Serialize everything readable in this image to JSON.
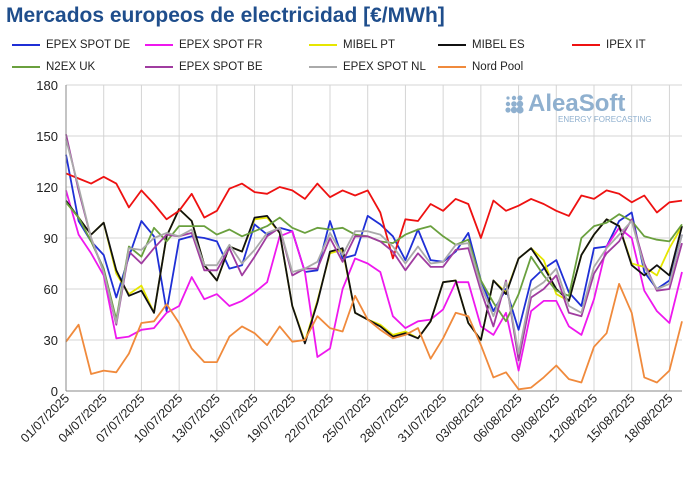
{
  "title": "Mercados europeos de electricidad [€/MWh]",
  "logo": {
    "name": "AleaSoft",
    "tagline": "ENERGY FORECASTING",
    "color": "#8fb0cf"
  },
  "chart_data": {
    "type": "line",
    "ylim": [
      0,
      180
    ],
    "yticks": [
      0,
      30,
      60,
      90,
      120,
      150,
      180
    ],
    "grid": true,
    "legend_position": "top",
    "x": [
      "01/07/2025",
      "02/07/2025",
      "03/07/2025",
      "04/07/2025",
      "05/07/2025",
      "06/07/2025",
      "07/07/2025",
      "08/07/2025",
      "09/07/2025",
      "10/07/2025",
      "11/07/2025",
      "12/07/2025",
      "13/07/2025",
      "14/07/2025",
      "15/07/2025",
      "16/07/2025",
      "17/07/2025",
      "18/07/2025",
      "19/07/2025",
      "20/07/2025",
      "21/07/2025",
      "22/07/2025",
      "23/07/2025",
      "24/07/2025",
      "25/07/2025",
      "26/07/2025",
      "27/07/2025",
      "28/07/2025",
      "29/07/2025",
      "30/07/2025",
      "31/07/2025",
      "01/08/2025",
      "02/08/2025",
      "03/08/2025",
      "04/08/2025",
      "05/08/2025",
      "06/08/2025",
      "07/08/2025",
      "08/08/2025",
      "09/08/2025",
      "10/08/2025",
      "11/08/2025",
      "12/08/2025",
      "13/08/2025",
      "14/08/2025",
      "15/08/2025",
      "16/08/2025",
      "17/08/2025",
      "18/08/2025",
      "19/08/2025"
    ],
    "xtick_labels": [
      "01/07/2025",
      "04/07/2025",
      "07/07/2025",
      "10/07/2025",
      "13/07/2025",
      "16/07/2025",
      "19/07/2025",
      "22/07/2025",
      "25/07/2025",
      "28/07/2025",
      "31/07/2025",
      "03/08/2025",
      "06/08/2025",
      "09/08/2025",
      "12/08/2025",
      "15/08/2025",
      "18/08/2025"
    ],
    "series": [
      {
        "name": "EPEX SPOT DE",
        "color": "#1f2fd6",
        "values": [
          139,
          100,
          88,
          80,
          55,
          79,
          100,
          91,
          47,
          89,
          91,
          90,
          88,
          72,
          74,
          98,
          92,
          96,
          94,
          70,
          71,
          100,
          78,
          80,
          103,
          98,
          91,
          77,
          95,
          77,
          76,
          82,
          93,
          65,
          47,
          60,
          36,
          65,
          72,
          77,
          58,
          50,
          84,
          85,
          100,
          105,
          70,
          60,
          65,
          92
        ]
      },
      {
        "name": "EPEX SPOT FR",
        "color": "#ee18ee",
        "values": [
          118,
          92,
          81,
          68,
          31,
          32,
          36,
          37,
          46,
          50,
          67,
          54,
          57,
          50,
          53,
          58,
          64,
          91,
          94,
          70,
          20,
          25,
          60,
          78,
          75,
          70,
          44,
          37,
          41,
          42,
          48,
          64,
          64,
          38,
          33,
          46,
          12,
          47,
          53,
          53,
          38,
          33,
          54,
          85,
          96,
          90,
          59,
          47,
          40,
          70
        ]
      },
      {
        "name": "MIBEL PT",
        "color": "#e6e600",
        "values": [
          111,
          102,
          92,
          99,
          69,
          57,
          62,
          46,
          91,
          107,
          100,
          74,
          65,
          85,
          82,
          101,
          102,
          93,
          50,
          29,
          53,
          81,
          83,
          46,
          42,
          39,
          33,
          35,
          31,
          41,
          64,
          65,
          40,
          30,
          65,
          58,
          78,
          84,
          77,
          57,
          53,
          80,
          92,
          101,
          97,
          75,
          73,
          68,
          84,
          97
        ]
      },
      {
        "name": "MIBEL ES",
        "color": "#111111",
        "values": [
          112,
          102,
          92,
          99,
          71,
          56,
          59,
          46,
          91,
          107,
          100,
          74,
          65,
          85,
          82,
          102,
          103,
          93,
          50,
          28,
          52,
          82,
          84,
          46,
          42,
          38,
          32,
          34,
          31,
          41,
          64,
          65,
          40,
          30,
          65,
          57,
          78,
          84,
          73,
          60,
          53,
          80,
          92,
          101,
          97,
          74,
          68,
          74,
          68,
          97
        ]
      },
      {
        "name": "IPEX IT",
        "color": "#ee1111",
        "values": [
          128,
          125,
          122,
          126,
          122,
          108,
          118,
          110,
          101,
          106,
          116,
          102,
          106,
          119,
          122,
          117,
          116,
          120,
          118,
          113,
          122,
          114,
          118,
          115,
          118,
          105,
          78,
          101,
          100,
          110,
          106,
          113,
          110,
          90,
          112,
          106,
          109,
          113,
          110,
          106,
          103,
          115,
          113,
          118,
          116,
          111,
          115,
          105,
          111,
          112
        ]
      },
      {
        "name": "N2EX UK",
        "color": "#6aa03e",
        "values": [
          111,
          102,
          88,
          72,
          42,
          85,
          79,
          96,
          88,
          97,
          97,
          97,
          92,
          95,
          91,
          94,
          97,
          102,
          96,
          93,
          96,
          95,
          96,
          92,
          91,
          88,
          87,
          92,
          95,
          97,
          91,
          86,
          89,
          65,
          52,
          41,
          57,
          79,
          68,
          59,
          56,
          90,
          97,
          99,
          104,
          100,
          91,
          89,
          88,
          98
        ]
      },
      {
        "name": "EPEX SPOT BE",
        "color": "#a03ca0",
        "values": [
          151,
          118,
          90,
          70,
          39,
          82,
          75,
          84,
          92,
          91,
          93,
          71,
          71,
          84,
          68,
          79,
          91,
          96,
          68,
          72,
          72,
          90,
          76,
          91,
          91,
          88,
          82,
          71,
          81,
          73,
          73,
          83,
          84,
          59,
          38,
          65,
          18,
          55,
          60,
          68,
          46,
          44,
          69,
          81,
          88,
          101,
          75,
          59,
          60,
          87
        ]
      },
      {
        "name": "EPEX SPOT NL",
        "color": "#aaaaaa",
        "values": [
          148,
          120,
          90,
          70,
          40,
          84,
          83,
          90,
          93,
          91,
          95,
          74,
          74,
          86,
          75,
          83,
          93,
          96,
          70,
          72,
          76,
          93,
          80,
          94,
          94,
          92,
          85,
          75,
          85,
          75,
          76,
          86,
          87,
          62,
          44,
          64,
          22,
          59,
          64,
          72,
          50,
          46,
          73,
          84,
          92,
          100,
          73,
          60,
          63,
          92
        ]
      },
      {
        "name": "Nord Pool",
        "color": "#f08a3c",
        "values": [
          29,
          39,
          10,
          12,
          11,
          22,
          40,
          41,
          51,
          40,
          25,
          17,
          17,
          32,
          38,
          34,
          27,
          38,
          29,
          30,
          44,
          37,
          35,
          56,
          42,
          36,
          31,
          33,
          37,
          19,
          31,
          46,
          44,
          27,
          8,
          11,
          1,
          2,
          8,
          15,
          7,
          5,
          26,
          34,
          63,
          46,
          8,
          5,
          12,
          41
        ]
      }
    ]
  }
}
